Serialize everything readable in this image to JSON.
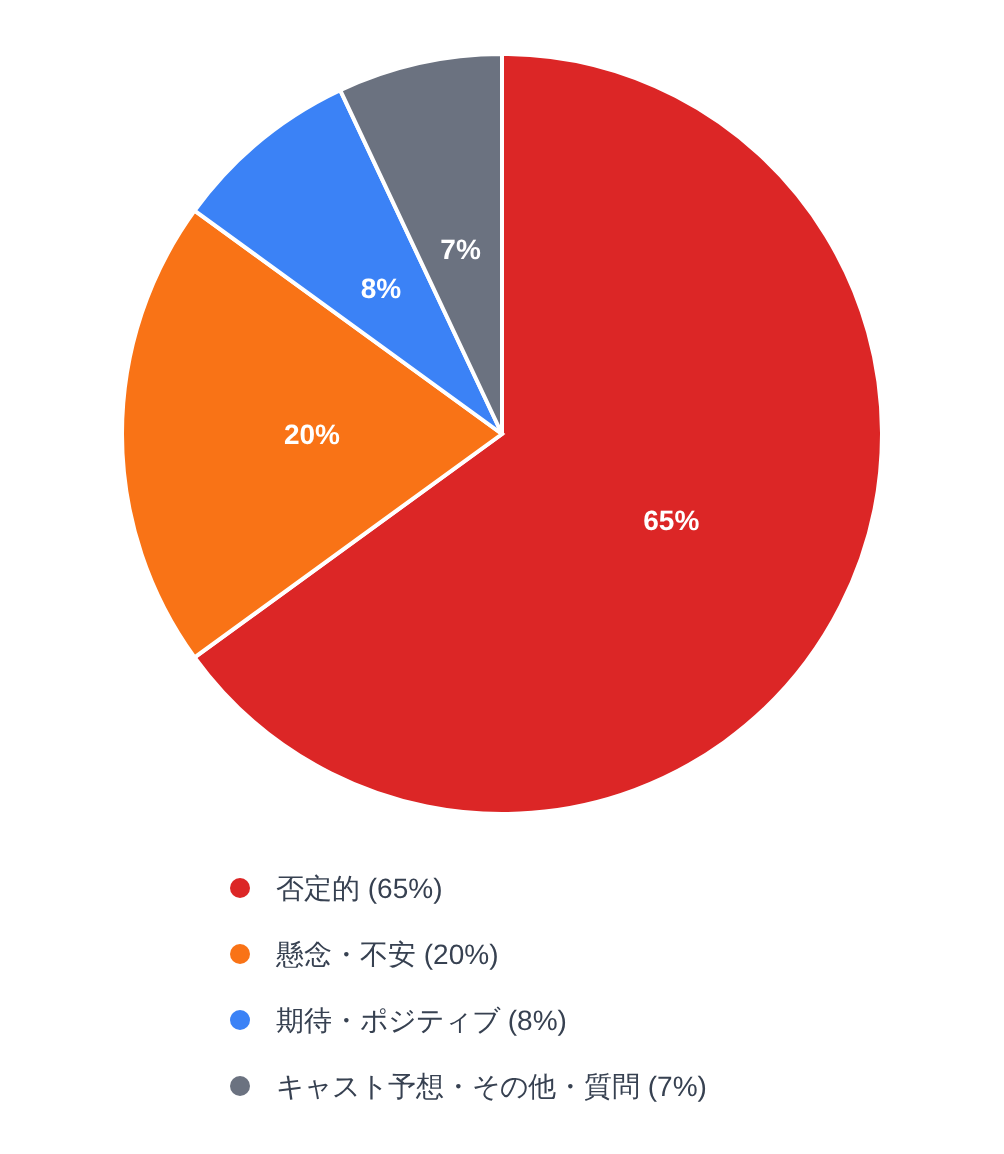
{
  "chart_data": {
    "type": "pie",
    "categories": [
      "否定的 (65%)",
      "懸念・不安 (20%)",
      "期待・ポジティブ (8%)",
      "キャスト予想・その他・質問 (7%)"
    ],
    "values": [
      65,
      20,
      8,
      7
    ],
    "colors": [
      "#dc2626",
      "#f97316",
      "#3b82f6",
      "#6b7280"
    ],
    "value_labels": [
      "65%",
      "20%",
      "8%",
      "7%"
    ],
    "legend": "bottom"
  }
}
